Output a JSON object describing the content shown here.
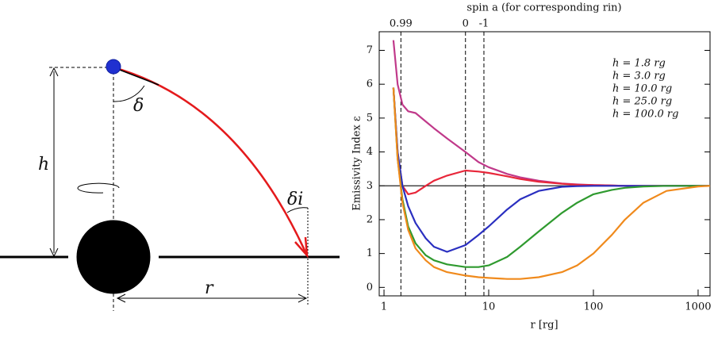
{
  "diagram": {
    "height_label": "h",
    "angle_label": "δ",
    "incident_angle_label": "δi",
    "radius_label": "r"
  },
  "chart_data": {
    "type": "line",
    "top_axis_label": "spin a (for corresponding rin)",
    "xlabel": "r [rg]",
    "ylabel": "Emissivity Index ε",
    "log_x": true,
    "xlim": [
      0.9,
      1300
    ],
    "xticks": [
      1,
      10,
      100,
      1000
    ],
    "ylim": [
      -0.25,
      7.55
    ],
    "yticks": [
      0,
      1,
      2,
      3,
      4,
      5,
      6,
      7
    ],
    "reference_line": 3,
    "spin_markers": [
      {
        "spin": 0.99,
        "r": 1.45
      },
      {
        "spin": 0,
        "r": 6
      },
      {
        "spin": -1,
        "r": 9
      }
    ],
    "x": [
      1.23,
      1.35,
      1.5,
      1.7,
      2,
      2.5,
      3,
      4,
      6,
      8,
      10,
      15,
      20,
      30,
      50,
      70,
      100,
      150,
      200,
      300,
      500,
      1000,
      1300
    ],
    "series": [
      {
        "name": "h = 1.8 rg",
        "color": "#c0398a",
        "values": [
          7.3,
          6.0,
          5.4,
          5.2,
          5.15,
          4.9,
          4.7,
          4.4,
          4.0,
          3.7,
          3.55,
          3.35,
          3.25,
          3.15,
          3.07,
          3.04,
          3.02,
          3.01,
          3.0,
          3.0,
          3.0,
          3.0,
          3.0
        ]
      },
      {
        "name": "h = 3.0 rg",
        "color": "#e8273a",
        "values": [
          5.9,
          4.0,
          3.0,
          2.75,
          2.8,
          3.0,
          3.15,
          3.3,
          3.45,
          3.42,
          3.38,
          3.28,
          3.2,
          3.12,
          3.06,
          3.03,
          3.02,
          3.01,
          3.0,
          3.0,
          3.0,
          3.0,
          3.0
        ]
      },
      {
        "name": "h = 10.0 rg",
        "color": "#2a2fc0",
        "values": [
          5.9,
          4.0,
          3.0,
          2.4,
          1.9,
          1.45,
          1.2,
          1.05,
          1.25,
          1.55,
          1.8,
          2.3,
          2.6,
          2.85,
          2.97,
          2.99,
          3.0,
          3.0,
          3.0,
          3.0,
          3.0,
          3.0,
          3.0
        ]
      },
      {
        "name": "h = 25.0 rg",
        "color": "#2f9a2f",
        "values": [
          5.9,
          3.8,
          2.6,
          1.8,
          1.3,
          0.95,
          0.8,
          0.68,
          0.6,
          0.6,
          0.65,
          0.9,
          1.2,
          1.65,
          2.2,
          2.5,
          2.75,
          2.88,
          2.94,
          2.98,
          3.0,
          3.0,
          3.0
        ]
      },
      {
        "name": "h = 100.0 rg",
        "color": "#f08a1c",
        "values": [
          5.9,
          3.8,
          2.5,
          1.7,
          1.15,
          0.8,
          0.6,
          0.45,
          0.35,
          0.3,
          0.28,
          0.25,
          0.25,
          0.3,
          0.45,
          0.65,
          1.0,
          1.55,
          2.0,
          2.5,
          2.85,
          2.98,
          3.0
        ]
      }
    ],
    "legend": "upper right"
  }
}
